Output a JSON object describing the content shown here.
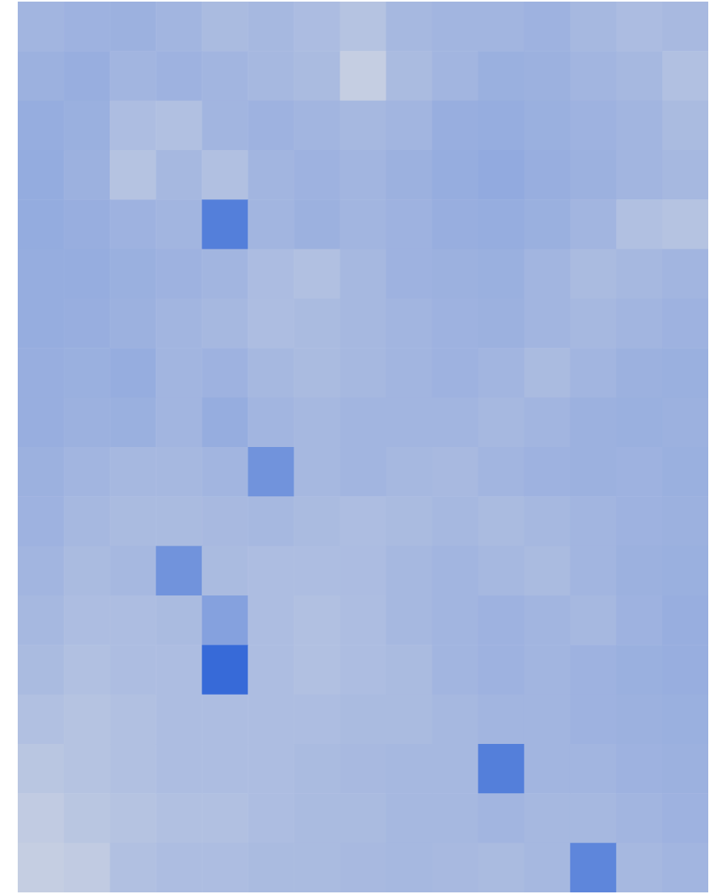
{
  "chart_data": {
    "type": "heatmap",
    "tick_labels": false,
    "zlim": [
      0,
      1
    ],
    "cells": [
      [
        0.3,
        0.32,
        0.33,
        0.3,
        0.26,
        0.28,
        0.25,
        0.2,
        0.28,
        0.3,
        0.3,
        0.32,
        0.28,
        0.25,
        0.27
      ],
      [
        0.33,
        0.35,
        0.3,
        0.32,
        0.3,
        0.28,
        0.26,
        0.12,
        0.26,
        0.3,
        0.34,
        0.33,
        0.3,
        0.28,
        0.22
      ],
      [
        0.36,
        0.34,
        0.24,
        0.22,
        0.3,
        0.32,
        0.3,
        0.28,
        0.3,
        0.35,
        0.36,
        0.34,
        0.32,
        0.3,
        0.26
      ],
      [
        0.37,
        0.33,
        0.2,
        0.28,
        0.22,
        0.3,
        0.32,
        0.3,
        0.33,
        0.36,
        0.38,
        0.35,
        0.33,
        0.3,
        0.28
      ],
      [
        0.37,
        0.35,
        0.32,
        0.3,
        0.7,
        0.3,
        0.33,
        0.3,
        0.32,
        0.35,
        0.36,
        0.34,
        0.3,
        0.22,
        0.2
      ],
      [
        0.36,
        0.36,
        0.34,
        0.32,
        0.3,
        0.25,
        0.22,
        0.28,
        0.32,
        0.33,
        0.34,
        0.3,
        0.26,
        0.28,
        0.3
      ],
      [
        0.36,
        0.35,
        0.33,
        0.3,
        0.28,
        0.24,
        0.26,
        0.28,
        0.3,
        0.32,
        0.33,
        0.3,
        0.28,
        0.3,
        0.32
      ],
      [
        0.35,
        0.34,
        0.36,
        0.3,
        0.32,
        0.28,
        0.26,
        0.28,
        0.3,
        0.32,
        0.3,
        0.26,
        0.3,
        0.33,
        0.34
      ],
      [
        0.35,
        0.33,
        0.34,
        0.3,
        0.36,
        0.3,
        0.28,
        0.3,
        0.3,
        0.3,
        0.28,
        0.3,
        0.33,
        0.34,
        0.33
      ],
      [
        0.33,
        0.3,
        0.28,
        0.28,
        0.3,
        0.55,
        0.28,
        0.3,
        0.28,
        0.27,
        0.3,
        0.32,
        0.33,
        0.32,
        0.34
      ],
      [
        0.32,
        0.28,
        0.26,
        0.26,
        0.27,
        0.28,
        0.26,
        0.24,
        0.26,
        0.28,
        0.26,
        0.28,
        0.3,
        0.32,
        0.33
      ],
      [
        0.3,
        0.26,
        0.28,
        0.55,
        0.26,
        0.24,
        0.24,
        0.25,
        0.28,
        0.3,
        0.28,
        0.26,
        0.3,
        0.33,
        0.34
      ],
      [
        0.28,
        0.24,
        0.24,
        0.26,
        0.45,
        0.24,
        0.22,
        0.24,
        0.28,
        0.3,
        0.32,
        0.3,
        0.28,
        0.32,
        0.35
      ],
      [
        0.26,
        0.22,
        0.24,
        0.24,
        0.85,
        0.24,
        0.22,
        0.24,
        0.26,
        0.3,
        0.32,
        0.3,
        0.32,
        0.34,
        0.35
      ],
      [
        0.22,
        0.2,
        0.22,
        0.24,
        0.24,
        0.24,
        0.24,
        0.26,
        0.26,
        0.28,
        0.3,
        0.3,
        0.32,
        0.33,
        0.34
      ],
      [
        0.18,
        0.2,
        0.22,
        0.24,
        0.24,
        0.24,
        0.26,
        0.27,
        0.28,
        0.28,
        0.7,
        0.3,
        0.3,
        0.32,
        0.33
      ],
      [
        0.14,
        0.18,
        0.2,
        0.22,
        0.22,
        0.24,
        0.26,
        0.26,
        0.28,
        0.28,
        0.3,
        0.28,
        0.28,
        0.3,
        0.32
      ],
      [
        0.12,
        0.14,
        0.22,
        0.24,
        0.24,
        0.26,
        0.26,
        0.27,
        0.28,
        0.27,
        0.26,
        0.28,
        0.65,
        0.28,
        0.3
      ]
    ]
  }
}
